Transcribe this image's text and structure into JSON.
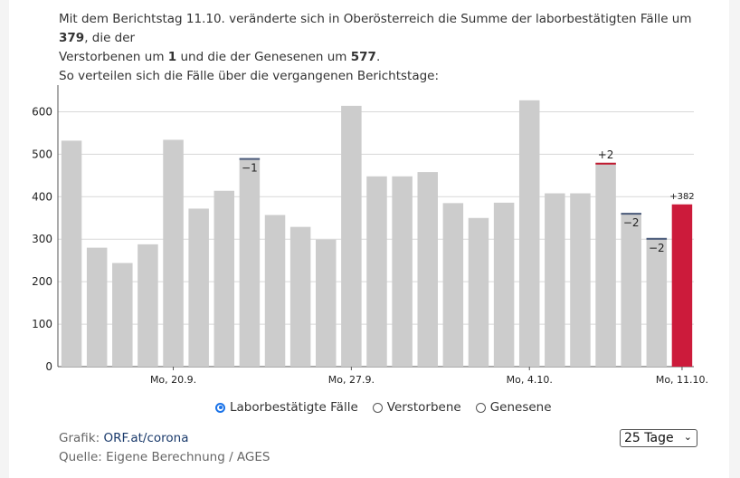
{
  "intro": {
    "line1_prefix": "Mit dem Berichtstag 11.10. veränderte sich in Oberösterreich die Summe der laborbestätigten Fälle um ",
    "cases_delta": "379",
    "line1_suffix": ", die der",
    "line2_prefix": "Verstorbenen um ",
    "deaths_delta": "1",
    "line2_mid": " und die der Genesenen um ",
    "recovered_delta": "577",
    "line2_suffix": ".",
    "line3": "So verteilen sich die Fälle über die vergangenen Berichtstage:"
  },
  "chart_data": {
    "type": "bar",
    "ylim": [
      0,
      650
    ],
    "yticks": [
      0,
      100,
      200,
      300,
      400,
      500,
      600
    ],
    "values": [
      532,
      280,
      244,
      288,
      534,
      372,
      414,
      491,
      357,
      329,
      299,
      614,
      448,
      448,
      458,
      385,
      350,
      386,
      627,
      408,
      408,
      480,
      362,
      303,
      382
    ],
    "highlight_index": 24,
    "x_labels": [
      {
        "index": 4,
        "label": "Mo, 20.9."
      },
      {
        "index": 11,
        "label": "Mo, 27.9."
      },
      {
        "index": 18,
        "label": "Mo, 4.10."
      },
      {
        "index": 24,
        "label": "Mo, 11.10."
      }
    ],
    "annotations": [
      {
        "index": 7,
        "text": "−1",
        "kind": "decrease"
      },
      {
        "index": 21,
        "text": "+2",
        "kind": "increase"
      },
      {
        "index": 22,
        "text": "−2",
        "kind": "decrease"
      },
      {
        "index": 23,
        "text": "−2",
        "kind": "decrease"
      },
      {
        "index": 24,
        "text": "+382",
        "kind": "new"
      }
    ],
    "colors": {
      "bar": "#cccccc",
      "highlight": "#cc1b3b",
      "increase": "#c0192f",
      "decrease": "#4a5a7a",
      "grid": "#d8d8d8"
    }
  },
  "legend": {
    "options": [
      {
        "label": "Laborbestätigte Fälle",
        "checked": true
      },
      {
        "label": "Verstorbene",
        "checked": false
      },
      {
        "label": "Genesene",
        "checked": false
      }
    ]
  },
  "footer": {
    "grafik_prefix": "Grafik: ",
    "grafik_link": "ORF.at/corona",
    "quelle": "Quelle: Eigene Berechnung / AGES"
  },
  "range_select": {
    "value": "25 Tage",
    "chevron_icon": "chevron-down-icon"
  }
}
